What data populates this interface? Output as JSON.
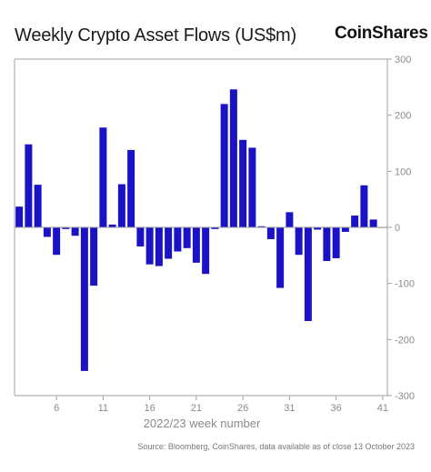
{
  "header": {
    "title": "Weekly Crypto Asset Flows (US$m)",
    "brand": "CoinShares"
  },
  "footer": {
    "source": "Source: Bloomberg, CoinShares, data available as of close 13 October 2023"
  },
  "colors": {
    "bar": "#1a12c4",
    "axis": "#a0a0a0",
    "tick_text": "#8a8a8a",
    "zero_line": "#9a9a9a"
  },
  "chart_data": {
    "type": "bar",
    "title": "Weekly Crypto Asset Flows (US$m)",
    "xlabel": "2022/23 week number",
    "ylabel": "",
    "ylim": [
      -300,
      300
    ],
    "yticks": [
      300,
      200,
      100,
      0,
      -100,
      -200,
      -300
    ],
    "xticks": [
      6,
      11,
      16,
      21,
      26,
      31,
      36,
      41
    ],
    "x": [
      2,
      3,
      4,
      5,
      6,
      7,
      8,
      9,
      10,
      11,
      12,
      13,
      14,
      15,
      16,
      17,
      18,
      19,
      20,
      21,
      22,
      23,
      24,
      25,
      26,
      27,
      28,
      29,
      30,
      31,
      32,
      33,
      34,
      35,
      36,
      37,
      38,
      39,
      40,
      41
    ],
    "values": [
      37,
      148,
      76,
      -17,
      -49,
      -3,
      -15,
      -256,
      -104,
      178,
      5,
      77,
      138,
      -34,
      -66,
      -69,
      -56,
      -43,
      -37,
      -63,
      -83,
      -3,
      220,
      246,
      156,
      142,
      2,
      -21,
      -108,
      27,
      -49,
      -167,
      -4,
      -60,
      -55,
      -8,
      21,
      75,
      14,
      0
    ],
    "y_side": "right",
    "grid": false
  }
}
